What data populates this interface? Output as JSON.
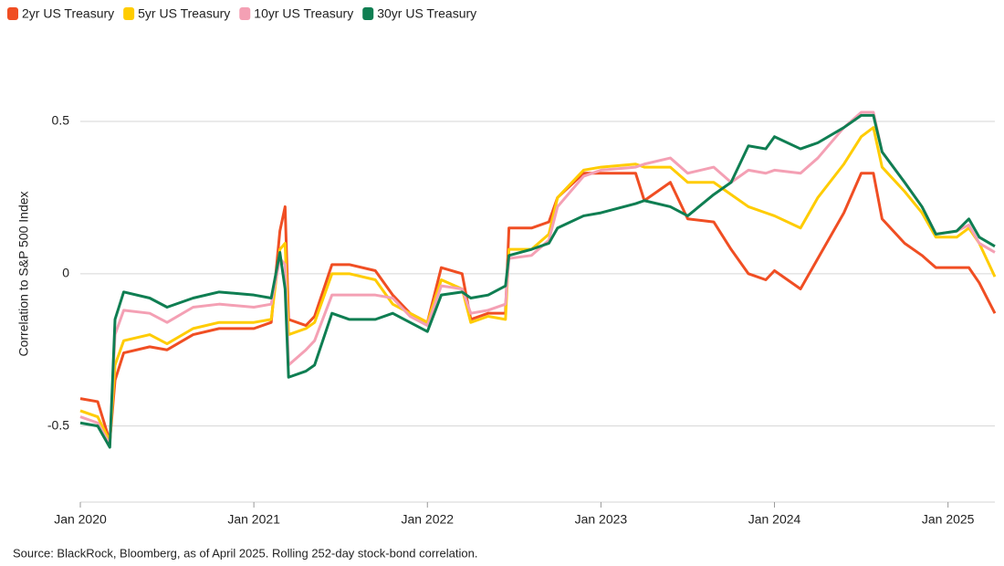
{
  "chart_data": {
    "type": "line",
    "y_label": "Correlation to S&P 500 Index",
    "source": "Source: BlackRock, Bloomberg, as of April 2025. Rolling 252-day stock-bond correlation.",
    "x": [
      2020.0,
      2020.1,
      2020.17,
      2020.2,
      2020.25,
      2020.4,
      2020.5,
      2020.65,
      2020.8,
      2021.0,
      2021.1,
      2021.15,
      2021.18,
      2021.2,
      2021.3,
      2021.35,
      2021.45,
      2021.55,
      2021.7,
      2021.8,
      2021.9,
      2022.0,
      2022.08,
      2022.2,
      2022.25,
      2022.35,
      2022.45,
      2022.47,
      2022.6,
      2022.7,
      2022.75,
      2022.9,
      2023.0,
      2023.2,
      2023.25,
      2023.4,
      2023.5,
      2023.65,
      2023.75,
      2023.85,
      2023.95,
      2024.0,
      2024.15,
      2024.25,
      2024.4,
      2024.5,
      2024.57,
      2024.62,
      2024.75,
      2024.85,
      2024.93,
      2025.05,
      2025.12,
      2025.18,
      2025.27
    ],
    "series": [
      {
        "name": "2yr US Treasury",
        "color": "#f04e23",
        "values": [
          -0.41,
          -0.42,
          -0.55,
          -0.35,
          -0.26,
          -0.24,
          -0.25,
          -0.2,
          -0.18,
          -0.18,
          -0.16,
          0.14,
          0.22,
          -0.15,
          -0.17,
          -0.14,
          0.03,
          0.03,
          0.01,
          -0.07,
          -0.13,
          -0.16,
          0.02,
          0.0,
          -0.15,
          -0.13,
          -0.13,
          0.15,
          0.15,
          0.17,
          0.25,
          0.33,
          0.33,
          0.33,
          0.24,
          0.3,
          0.18,
          0.17,
          0.08,
          0.0,
          -0.02,
          0.01,
          -0.05,
          0.05,
          0.2,
          0.33,
          0.33,
          0.18,
          0.1,
          0.06,
          0.02,
          0.02,
          0.02,
          -0.03,
          -0.13
        ]
      },
      {
        "name": "5yr US Treasury",
        "color": "#ffcc00",
        "values": [
          -0.45,
          -0.47,
          -0.55,
          -0.3,
          -0.22,
          -0.2,
          -0.23,
          -0.18,
          -0.16,
          -0.16,
          -0.15,
          0.08,
          0.1,
          -0.2,
          -0.18,
          -0.16,
          0.0,
          0.0,
          -0.02,
          -0.1,
          -0.13,
          -0.16,
          -0.02,
          -0.05,
          -0.16,
          -0.14,
          -0.15,
          0.08,
          0.08,
          0.13,
          0.25,
          0.34,
          0.35,
          0.36,
          0.35,
          0.35,
          0.3,
          0.3,
          0.26,
          0.22,
          0.2,
          0.19,
          0.15,
          0.25,
          0.36,
          0.45,
          0.48,
          0.35,
          0.27,
          0.2,
          0.12,
          0.12,
          0.15,
          0.1,
          -0.01
        ]
      },
      {
        "name": "10yr US Treasury",
        "color": "#f4a0b4",
        "values": [
          -0.47,
          -0.49,
          -0.56,
          -0.2,
          -0.12,
          -0.13,
          -0.16,
          -0.11,
          -0.1,
          -0.11,
          -0.1,
          0.05,
          0.03,
          -0.3,
          -0.25,
          -0.22,
          -0.07,
          -0.07,
          -0.07,
          -0.08,
          -0.14,
          -0.17,
          -0.04,
          -0.05,
          -0.13,
          -0.12,
          -0.1,
          0.05,
          0.06,
          0.11,
          0.22,
          0.32,
          0.34,
          0.35,
          0.36,
          0.38,
          0.33,
          0.35,
          0.3,
          0.34,
          0.33,
          0.34,
          0.33,
          0.38,
          0.48,
          0.53,
          0.53,
          0.4,
          0.3,
          0.22,
          0.13,
          0.14,
          0.16,
          0.1,
          0.07
        ]
      },
      {
        "name": "30yr US Treasury",
        "color": "#0f7e52",
        "values": [
          -0.49,
          -0.5,
          -0.57,
          -0.15,
          -0.06,
          -0.08,
          -0.11,
          -0.08,
          -0.06,
          -0.07,
          -0.08,
          0.07,
          -0.05,
          -0.34,
          -0.32,
          -0.3,
          -0.13,
          -0.15,
          -0.15,
          -0.13,
          -0.16,
          -0.19,
          -0.07,
          -0.06,
          -0.08,
          -0.07,
          -0.04,
          0.06,
          0.08,
          0.1,
          0.15,
          0.19,
          0.2,
          0.23,
          0.24,
          0.22,
          0.19,
          0.26,
          0.3,
          0.42,
          0.41,
          0.45,
          0.41,
          0.43,
          0.48,
          0.52,
          0.52,
          0.4,
          0.3,
          0.22,
          0.13,
          0.14,
          0.18,
          0.12,
          0.09
        ]
      }
    ],
    "xlim": [
      2020.0,
      2025.27
    ],
    "xticks": [
      {
        "value": 2020,
        "label": "Jan 2020"
      },
      {
        "value": 2021,
        "label": "Jan 2021"
      },
      {
        "value": 2022,
        "label": "Jan 2022"
      },
      {
        "value": 2023,
        "label": "Jan 2023"
      },
      {
        "value": 2024,
        "label": "Jan 2024"
      },
      {
        "value": 2025,
        "label": "Jan 2025"
      }
    ],
    "ylim": [
      -0.75,
      0.65
    ],
    "yticks": [
      -0.5,
      0,
      0.5
    ],
    "grid": true,
    "legend": "top-left"
  }
}
